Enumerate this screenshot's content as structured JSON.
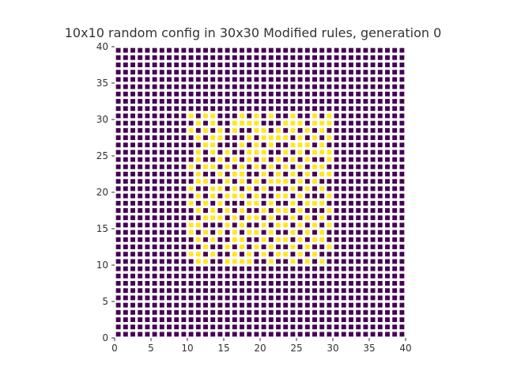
{
  "chart_data": {
    "type": "heatmap",
    "title": "10x10 random config in 30x30 Modified rules, generation 0",
    "xlabel": "",
    "ylabel": "",
    "xlim": [
      0,
      40
    ],
    "ylim": [
      0,
      40
    ],
    "x_ticks": [
      "0",
      "5",
      "10",
      "15",
      "20",
      "25",
      "30",
      "35",
      "40"
    ],
    "y_ticks": [
      "0",
      "5",
      "10",
      "15",
      "20",
      "25",
      "30",
      "35",
      "40"
    ],
    "grid_size": 40,
    "grid": false,
    "colors": {
      "dead": "#440154",
      "alive": "#fde725",
      "background": "#ffffff",
      "text": "#333333"
    },
    "live_cells_by_row": {
      "30": [
        10,
        12,
        13,
        17,
        19,
        21,
        24,
        27,
        29
      ],
      "29": [
        11,
        13,
        16,
        17,
        18,
        19,
        23,
        24,
        25,
        27,
        28,
        29
      ],
      "28": [
        10,
        12,
        14,
        16,
        19,
        20,
        22,
        24,
        26,
        28
      ],
      "27": [
        11,
        13,
        14,
        18,
        20,
        21,
        22,
        23,
        25,
        27,
        29
      ],
      "26": [
        12,
        13,
        17,
        19,
        21,
        24,
        25,
        26,
        28
      ],
      "25": [
        11,
        13,
        15,
        18,
        19,
        20,
        23,
        25,
        27,
        28,
        29
      ],
      "24": [
        11,
        14,
        16,
        18,
        20,
        22,
        24,
        26,
        29
      ],
      "23": [
        10,
        12,
        13,
        15,
        17,
        19,
        21,
        23,
        25,
        27,
        28
      ],
      "22": [
        11,
        14,
        16,
        17,
        20,
        22,
        24,
        26,
        28,
        29
      ],
      "21": [
        11,
        12,
        15,
        17,
        19,
        21,
        22,
        23,
        25,
        27
      ],
      "20": [
        10,
        13,
        14,
        16,
        18,
        20,
        24,
        26,
        28
      ],
      "19": [
        11,
        13,
        15,
        16,
        17,
        19,
        22,
        23,
        25,
        29
      ],
      "18": [
        10,
        12,
        14,
        18,
        19,
        21,
        24,
        26,
        27,
        28
      ],
      "17": [
        11,
        13,
        15,
        17,
        20,
        22,
        23,
        25,
        29
      ],
      "16": [
        12,
        13,
        14,
        16,
        18,
        19,
        21,
        24,
        26,
        28
      ],
      "15": [
        10,
        11,
        15,
        17,
        20,
        22,
        23,
        25,
        27,
        29
      ],
      "14": [
        10,
        12,
        14,
        16,
        18,
        19,
        21,
        24,
        26,
        28
      ],
      "13": [
        11,
        13,
        16,
        17,
        20,
        22,
        23,
        25,
        27,
        28
      ],
      "12": [
        12,
        15,
        17,
        19,
        21,
        24,
        26,
        29
      ],
      "11": [
        10,
        11,
        13,
        16,
        18,
        20,
        22,
        23,
        25,
        27
      ],
      "10": [
        11,
        12,
        15,
        16,
        17,
        18,
        21,
        24,
        26,
        28
      ]
    }
  }
}
